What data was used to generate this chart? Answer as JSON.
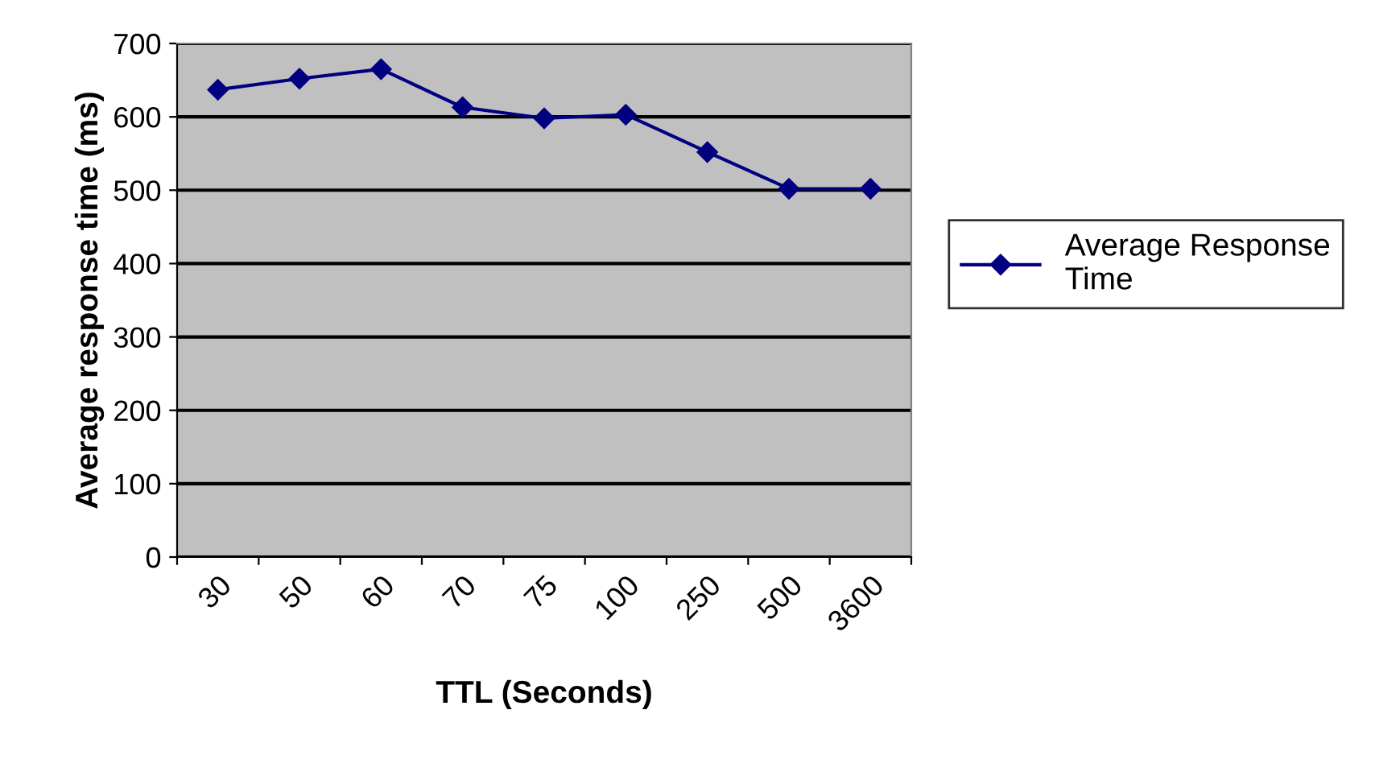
{
  "chart_data": {
    "type": "line",
    "xlabel": "TTL (Seconds)",
    "ylabel": "Average response time (ms)",
    "categories": [
      "30",
      "50",
      "60",
      "70",
      "75",
      "100",
      "250",
      "500",
      "3600"
    ],
    "series": [
      {
        "name": "Average Response\nTime",
        "color": "#000080",
        "values": [
          637,
          652,
          665,
          613,
          598,
          603,
          552,
          502,
          502
        ]
      }
    ],
    "ylim": [
      0,
      700
    ],
    "yticks": [
      0,
      100,
      200,
      300,
      400,
      500,
      600,
      700
    ],
    "grid": "y",
    "legend": "right",
    "marker": "diamond",
    "line_style": "solid"
  }
}
